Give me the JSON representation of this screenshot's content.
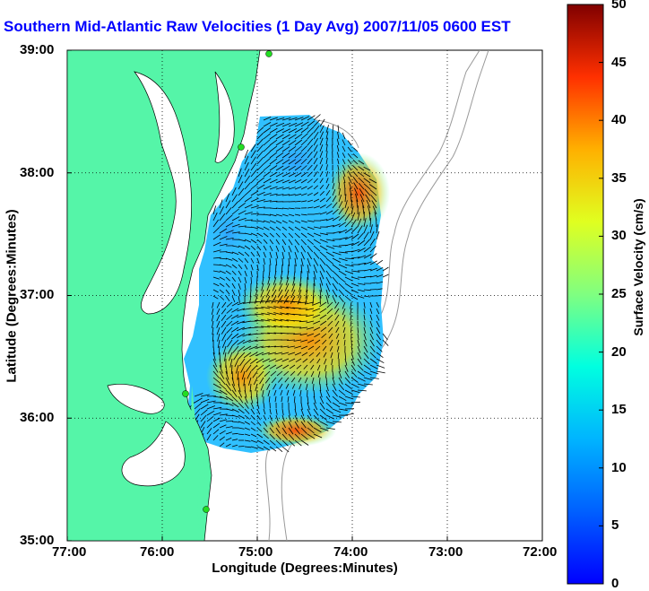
{
  "title": "Southern Mid-Atlantic Raw Velocities (1 Day Avg) 2007/11/05 0600 EST",
  "xaxis": {
    "label": "Longitude (Degrees:Minutes)",
    "ticks": [
      "77:00",
      "76:00",
      "75:00",
      "74:00",
      "73:00",
      "72:00"
    ]
  },
  "yaxis": {
    "label": "Latitude (Degrees:Minutes)",
    "ticks": [
      "39:00",
      "38:00",
      "37:00",
      "36:00",
      "35:00"
    ]
  },
  "colorbar": {
    "label": "Surface Velocity (cm/s)",
    "ticks": [
      "50",
      "45",
      "40",
      "35",
      "30",
      "25",
      "20",
      "15",
      "10",
      "5",
      "0"
    ],
    "min": 0,
    "max": 50,
    "colormap": "jet"
  },
  "colors": {
    "land": "#55f5a8",
    "title": "#0000ff",
    "station": "#22dd22",
    "bathymetry": "#999999"
  },
  "map": {
    "lon_range": [
      -77,
      -72
    ],
    "lat_range": [
      35,
      39
    ],
    "grid": "dotted"
  }
}
